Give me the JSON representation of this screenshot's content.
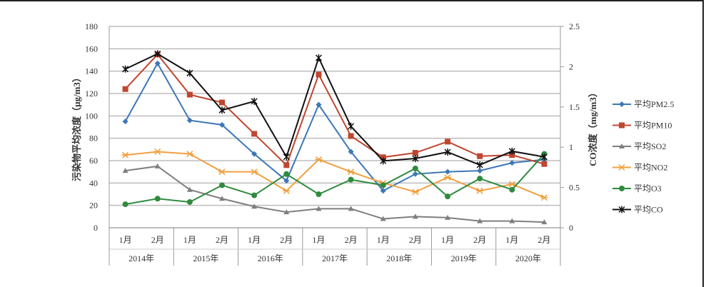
{
  "chart_data": {
    "type": "line",
    "ylabel": "污染物平均浓度（μg/m3）",
    "y2label": "CO浓度（mg/m3）",
    "ylim": [
      0,
      180
    ],
    "yticks": [
      0,
      20,
      40,
      60,
      80,
      100,
      120,
      140,
      160,
      180
    ],
    "y2lim": [
      0,
      2.5
    ],
    "y2ticks": [
      0,
      0.5,
      1,
      1.5,
      2,
      2.5
    ],
    "grid": true,
    "legend": "right",
    "categories": [
      "1月",
      "2月",
      "1月",
      "2月",
      "1月",
      "2月",
      "1月",
      "2月",
      "1月",
      "2月",
      "1月",
      "2月",
      "1月",
      "2月"
    ],
    "groups": [
      "2014年",
      "2015年",
      "2016年",
      "2017年",
      "2018年",
      "2019年",
      "2020年"
    ],
    "series": [
      {
        "name": "平均PM2.5",
        "axis": "left",
        "color": "#3d77b6",
        "marker": "diamond",
        "values": [
          95,
          147,
          96,
          92,
          66,
          42,
          110,
          68,
          33,
          48,
          50,
          51,
          58,
          61
        ]
      },
      {
        "name": "平均PM10",
        "axis": "left",
        "color": "#c0462f",
        "marker": "square",
        "values": [
          124,
          155,
          119,
          112,
          84,
          56,
          137,
          82,
          63,
          67,
          77,
          64,
          65,
          57
        ]
      },
      {
        "name": "平均SO2",
        "axis": "left",
        "color": "#7f7f7f",
        "marker": "triangle",
        "values": [
          51,
          55,
          34,
          26,
          19,
          14,
          17,
          17,
          8,
          10,
          9,
          6,
          6,
          5
        ]
      },
      {
        "name": "平均NO2",
        "axis": "left",
        "color": "#f0a040",
        "marker": "x",
        "values": [
          65,
          68,
          66,
          50,
          50,
          33,
          61,
          50,
          40,
          32,
          45,
          33,
          39,
          27
        ]
      },
      {
        "name": "平均O3",
        "axis": "left",
        "color": "#2e8b3e",
        "marker": "circle",
        "values": [
          21,
          26,
          23,
          38,
          29,
          48,
          30,
          43,
          38,
          53,
          28,
          44,
          34,
          66
        ]
      },
      {
        "name": "平均CO",
        "axis": "right",
        "color": "#111111",
        "marker": "star",
        "values": [
          1.97,
          2.16,
          1.92,
          1.46,
          1.57,
          0.88,
          2.11,
          1.26,
          0.83,
          0.86,
          0.94,
          0.78,
          0.95,
          0.88
        ]
      }
    ]
  }
}
